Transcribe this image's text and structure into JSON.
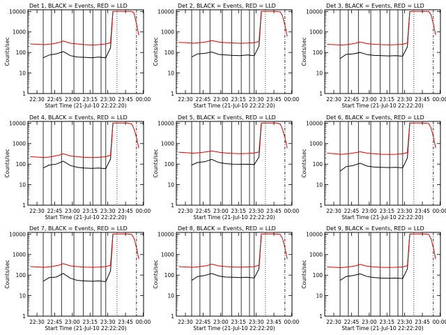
{
  "figure": {
    "xlabel": "Start Time (21-Jul-10 22:22:20)",
    "ylabel": "Counts/sec",
    "x_tick_labels": [
      "22:30",
      "22:45",
      "23:00",
      "23:15",
      "23:30",
      "23:45",
      "00:00"
    ],
    "y_tick_labels": [
      "1",
      "10",
      "100",
      "1000",
      "10000"
    ],
    "colors": {
      "events": "#000000",
      "lld": "#e00000",
      "axes": "#000000"
    }
  },
  "chart_data": [
    {
      "type": "line",
      "title": "Det 1, BLACK = Events, RED = LLD",
      "y_scale": "log",
      "ylim": [
        1,
        12000
      ],
      "x_unit": "minutes after 22:22:20",
      "xlim": [
        0,
        98
      ],
      "x_ticks": [
        7.7,
        22.7,
        37.7,
        52.7,
        67.7,
        82.7,
        97.7
      ],
      "event_lines": [
        13,
        20,
        28.5,
        39,
        47,
        55,
        62,
        66
      ],
      "dotted_lines": [
        75.5
      ],
      "dashdot_lines": [
        92
      ],
      "series": [
        {
          "name": "Events",
          "color": "#000000",
          "x": [
            13,
            18,
            24,
            30,
            36,
            42,
            48,
            54,
            60,
            66,
            70,
            72
          ],
          "y": [
            55,
            75,
            85,
            110,
            70,
            60,
            58,
            55,
            60,
            55,
            170,
            10000
          ]
        },
        {
          "name": "LLD",
          "color": "#e00000",
          "x": [
            2,
            8,
            14,
            20,
            26,
            30,
            36,
            42,
            48,
            54,
            60,
            66,
            70,
            72,
            78,
            84,
            88,
            90,
            92,
            94
          ],
          "y": [
            260,
            250,
            240,
            260,
            300,
            360,
            280,
            260,
            240,
            230,
            240,
            260,
            300,
            10000,
            10000,
            10000,
            10000,
            8000,
            2500,
            700
          ]
        }
      ]
    },
    {
      "type": "line",
      "title": "Det 2, BLACK = Events, RED = LLD",
      "y_scale": "log",
      "ylim": [
        1,
        12000
      ],
      "x_unit": "minutes after 22:22:20",
      "xlim": [
        0,
        98
      ],
      "x_ticks": [
        7.7,
        22.7,
        37.7,
        52.7,
        67.7,
        82.7,
        97.7
      ],
      "event_lines": [
        13,
        20,
        28.5,
        39,
        47,
        55,
        62,
        66
      ],
      "dotted_lines": [
        75.5
      ],
      "dashdot_lines": [
        92
      ],
      "series": [
        {
          "name": "Events",
          "color": "#000000",
          "x": [
            13,
            18,
            24,
            30,
            36,
            42,
            48,
            54,
            60,
            66,
            70,
            72
          ],
          "y": [
            60,
            85,
            90,
            105,
            80,
            75,
            72,
            70,
            75,
            70,
            200,
            10000
          ]
        },
        {
          "name": "LLD",
          "color": "#e00000",
          "x": [
            2,
            8,
            14,
            20,
            26,
            30,
            36,
            42,
            48,
            54,
            60,
            66,
            70,
            72,
            78,
            84,
            88,
            90,
            92,
            94
          ],
          "y": [
            310,
            300,
            280,
            300,
            330,
            380,
            320,
            300,
            290,
            280,
            285,
            300,
            340,
            10000,
            10000,
            10000,
            9500,
            6000,
            2200,
            600
          ]
        }
      ]
    },
    {
      "type": "line",
      "title": "Det 3, BLACK = Events, RED = LLD",
      "y_scale": "log",
      "ylim": [
        1,
        12000
      ],
      "x_unit": "minutes after 22:22:20",
      "xlim": [
        0,
        98
      ],
      "x_ticks": [
        7.7,
        22.7,
        37.7,
        52.7,
        67.7,
        82.7,
        97.7
      ],
      "event_lines": [
        13,
        20,
        28.5,
        39,
        47,
        55,
        62,
        66
      ],
      "dotted_lines": [
        75.5
      ],
      "dashdot_lines": [
        92
      ],
      "series": [
        {
          "name": "Events",
          "color": "#000000",
          "x": [
            13,
            18,
            24,
            30,
            36,
            42,
            48,
            54,
            60,
            66,
            70,
            72
          ],
          "y": [
            50,
            80,
            85,
            100,
            78,
            72,
            70,
            68,
            70,
            66,
            190,
            10000
          ]
        },
        {
          "name": "LLD",
          "color": "#e00000",
          "x": [
            2,
            8,
            14,
            20,
            26,
            30,
            36,
            42,
            48,
            54,
            60,
            66,
            70,
            72,
            78,
            84,
            88,
            90,
            92,
            94
          ],
          "y": [
            250,
            240,
            230,
            245,
            280,
            320,
            270,
            250,
            240,
            235,
            240,
            250,
            290,
            10000,
            10000,
            10000,
            10000,
            7000,
            2500,
            700
          ]
        }
      ]
    },
    {
      "type": "line",
      "title": "Det 4, BLACK = Events, RED = LLD",
      "y_scale": "log",
      "ylim": [
        1,
        12000
      ],
      "x_unit": "minutes after 22:22:20",
      "xlim": [
        0,
        98
      ],
      "x_ticks": [
        7.7,
        22.7,
        37.7,
        52.7,
        67.7,
        82.7,
        97.7
      ],
      "event_lines": [
        13,
        20,
        28.5,
        39,
        47,
        55,
        62,
        66
      ],
      "dotted_lines": [
        75.5
      ],
      "dashdot_lines": [
        92
      ],
      "series": [
        {
          "name": "Events",
          "color": "#000000",
          "x": [
            13,
            18,
            24,
            30,
            36,
            42,
            48,
            54,
            60,
            66,
            70,
            72
          ],
          "y": [
            65,
            90,
            100,
            140,
            85,
            70,
            65,
            62,
            65,
            60,
            180,
            10000
          ]
        },
        {
          "name": "LLD",
          "color": "#e00000",
          "x": [
            2,
            8,
            14,
            20,
            26,
            30,
            36,
            42,
            48,
            54,
            60,
            66,
            70,
            72,
            78,
            84,
            88,
            90,
            92,
            94
          ],
          "y": [
            230,
            220,
            210,
            230,
            270,
            320,
            250,
            230,
            215,
            210,
            215,
            230,
            270,
            10000,
            10000,
            10000,
            9000,
            5000,
            2000,
            600
          ]
        }
      ]
    },
    {
      "type": "line",
      "title": "Det 5, BLACK = Events, RED = LLD",
      "y_scale": "log",
      "ylim": [
        1,
        12000
      ],
      "x_unit": "minutes after 22:22:20",
      "xlim": [
        0,
        98
      ],
      "x_ticks": [
        7.7,
        22.7,
        37.7,
        52.7,
        67.7,
        82.7,
        97.7
      ],
      "event_lines": [
        13,
        20,
        28.5,
        39,
        47,
        55,
        62,
        66
      ],
      "dotted_lines": [
        75.5
      ],
      "dashdot_lines": [
        92
      ],
      "series": [
        {
          "name": "Events",
          "color": "#000000",
          "x": [
            13,
            18,
            24,
            30,
            36,
            42,
            48,
            54,
            60,
            66,
            70,
            72
          ],
          "y": [
            90,
            120,
            130,
            170,
            120,
            105,
            100,
            98,
            100,
            95,
            220,
            10000
          ]
        },
        {
          "name": "LLD",
          "color": "#e00000",
          "x": [
            2,
            8,
            14,
            20,
            26,
            30,
            36,
            42,
            48,
            54,
            60,
            66,
            70,
            72,
            78,
            84,
            88,
            90,
            92,
            94
          ],
          "y": [
            380,
            360,
            340,
            360,
            400,
            440,
            380,
            350,
            330,
            320,
            330,
            350,
            390,
            10000,
            10000,
            10000,
            9000,
            5000,
            2000,
            600
          ]
        }
      ]
    },
    {
      "type": "line",
      "title": "Det 6, BLACK = Events, RED = LLD",
      "y_scale": "log",
      "ylim": [
        1,
        12000
      ],
      "x_unit": "minutes after 22:22:20",
      "xlim": [
        0,
        98
      ],
      "x_ticks": [
        7.7,
        22.7,
        37.7,
        52.7,
        67.7,
        82.7,
        97.7
      ],
      "event_lines": [
        13,
        20,
        28.5,
        39,
        47,
        55,
        62,
        66
      ],
      "dotted_lines": [
        75.5
      ],
      "dashdot_lines": [
        92
      ],
      "series": [
        {
          "name": "Events",
          "color": "#000000",
          "x": [
            13,
            18,
            24,
            30,
            36,
            42,
            48,
            54,
            60,
            66,
            70,
            72
          ],
          "y": [
            45,
            75,
            85,
            110,
            80,
            72,
            70,
            68,
            70,
            66,
            200,
            10000
          ]
        },
        {
          "name": "LLD",
          "color": "#e00000",
          "x": [
            2,
            8,
            14,
            20,
            26,
            30,
            36,
            42,
            48,
            54,
            60,
            66,
            70,
            72,
            78,
            84,
            88,
            90,
            92,
            94
          ],
          "y": [
            340,
            320,
            300,
            320,
            360,
            400,
            340,
            320,
            300,
            295,
            300,
            320,
            360,
            10000,
            10000,
            10000,
            9500,
            6000,
            2200,
            600
          ]
        }
      ]
    },
    {
      "type": "line",
      "title": "Det 7, BLACK = Events, RED = LLD",
      "y_scale": "log",
      "ylim": [
        1,
        12000
      ],
      "x_unit": "minutes after 22:22:20",
      "xlim": [
        0,
        98
      ],
      "x_ticks": [
        7.7,
        22.7,
        37.7,
        52.7,
        67.7,
        82.7,
        97.7
      ],
      "event_lines": [
        13,
        20,
        28.5,
        39,
        47,
        55,
        62,
        66
      ],
      "dotted_lines": [
        75.5
      ],
      "dashdot_lines": [
        92
      ],
      "series": [
        {
          "name": "Events",
          "color": "#000000",
          "x": [
            13,
            18,
            24,
            30,
            36,
            42,
            48,
            54,
            60,
            66,
            70,
            72
          ],
          "y": [
            50,
            75,
            80,
            120,
            70,
            55,
            52,
            50,
            52,
            48,
            160,
            10000
          ]
        },
        {
          "name": "LLD",
          "color": "#e00000",
          "x": [
            2,
            8,
            14,
            20,
            26,
            30,
            36,
            42,
            48,
            54,
            60,
            66,
            70,
            72,
            78,
            84,
            88,
            90,
            92,
            94
          ],
          "y": [
            260,
            250,
            240,
            260,
            300,
            360,
            280,
            260,
            245,
            240,
            245,
            260,
            300,
            10000,
            10000,
            10000,
            9500,
            6000,
            2200,
            600
          ]
        }
      ]
    },
    {
      "type": "line",
      "title": "Det 8, BLACK = Events, RED = LLD",
      "y_scale": "log",
      "ylim": [
        1,
        12000
      ],
      "x_unit": "minutes after 22:22:20",
      "xlim": [
        0,
        98
      ],
      "x_ticks": [
        7.7,
        22.7,
        37.7,
        52.7,
        67.7,
        82.7,
        97.7
      ],
      "event_lines": [
        13,
        20,
        28.5,
        39,
        47,
        55,
        62,
        66
      ],
      "dotted_lines": [
        75.5
      ],
      "dashdot_lines": [
        92
      ],
      "series": [
        {
          "name": "Events",
          "color": "#000000",
          "x": [
            13,
            18,
            24,
            30,
            36,
            42,
            48,
            54,
            60,
            66,
            70,
            72
          ],
          "y": [
            55,
            85,
            95,
            120,
            90,
            80,
            78,
            75,
            78,
            72,
            200,
            10000
          ]
        },
        {
          "name": "LLD",
          "color": "#e00000",
          "x": [
            2,
            8,
            14,
            20,
            26,
            30,
            36,
            42,
            48,
            54,
            60,
            66,
            70,
            72,
            78,
            84,
            88,
            90,
            92,
            94
          ],
          "y": [
            260,
            250,
            240,
            260,
            290,
            340,
            280,
            260,
            250,
            245,
            250,
            260,
            300,
            10000,
            10000,
            10000,
            9500,
            6000,
            2200,
            600
          ]
        }
      ]
    },
    {
      "type": "line",
      "title": "Det 9, BLACK = Events, RED = LLD",
      "y_scale": "log",
      "ylim": [
        1,
        12000
      ],
      "x_unit": "minutes after 22:22:20",
      "xlim": [
        0,
        98
      ],
      "x_ticks": [
        7.7,
        22.7,
        37.7,
        52.7,
        67.7,
        82.7,
        97.7
      ],
      "event_lines": [
        13,
        20,
        28.5,
        39,
        47,
        55,
        62,
        66
      ],
      "dotted_lines": [
        75.5
      ],
      "dashdot_lines": [
        92
      ],
      "series": [
        {
          "name": "Events",
          "color": "#000000",
          "x": [
            13,
            18,
            24,
            30,
            36,
            42,
            48,
            54,
            60,
            66,
            70,
            72
          ],
          "y": [
            55,
            85,
            95,
            115,
            85,
            75,
            72,
            70,
            72,
            68,
            200,
            10000
          ]
        },
        {
          "name": "LLD",
          "color": "#e00000",
          "x": [
            2,
            8,
            14,
            20,
            26,
            30,
            36,
            42,
            48,
            54,
            60,
            66,
            70,
            72,
            78,
            84,
            88,
            90,
            92,
            94
          ],
          "y": [
            250,
            240,
            230,
            250,
            280,
            330,
            270,
            250,
            240,
            235,
            240,
            250,
            290,
            10000,
            10000,
            10000,
            9500,
            6000,
            2200,
            600
          ]
        }
      ]
    }
  ]
}
